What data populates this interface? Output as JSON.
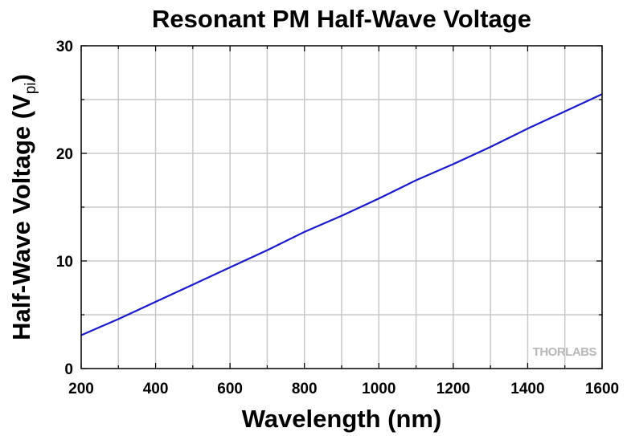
{
  "chart_data": {
    "type": "line",
    "title": "Resonant PM Half-Wave Voltage",
    "xlabel": "Wavelength (nm)",
    "ylabel_main": "Half-Wave Voltage (V",
    "ylabel_sub": "pi",
    "ylabel_close": ")",
    "xlim": [
      200,
      1600
    ],
    "ylim": [
      0,
      30
    ],
    "xticks": [
      200,
      400,
      600,
      800,
      1000,
      1200,
      1400,
      1600
    ],
    "yticks": [
      0,
      10,
      20,
      30
    ],
    "grid": true,
    "series": [
      {
        "color": "#1a1acc",
        "x": [
          200,
          300,
          400,
          500,
          600,
          700,
          800,
          900,
          1000,
          1100,
          1200,
          1300,
          1400,
          1500,
          1600
        ],
        "y": [
          3.1,
          4.6,
          6.2,
          7.8,
          9.4,
          11.0,
          12.7,
          14.2,
          15.8,
          17.5,
          19.0,
          20.6,
          22.3,
          23.9,
          25.5
        ]
      }
    ]
  },
  "logo": {
    "brand_text": "THORLABS"
  }
}
